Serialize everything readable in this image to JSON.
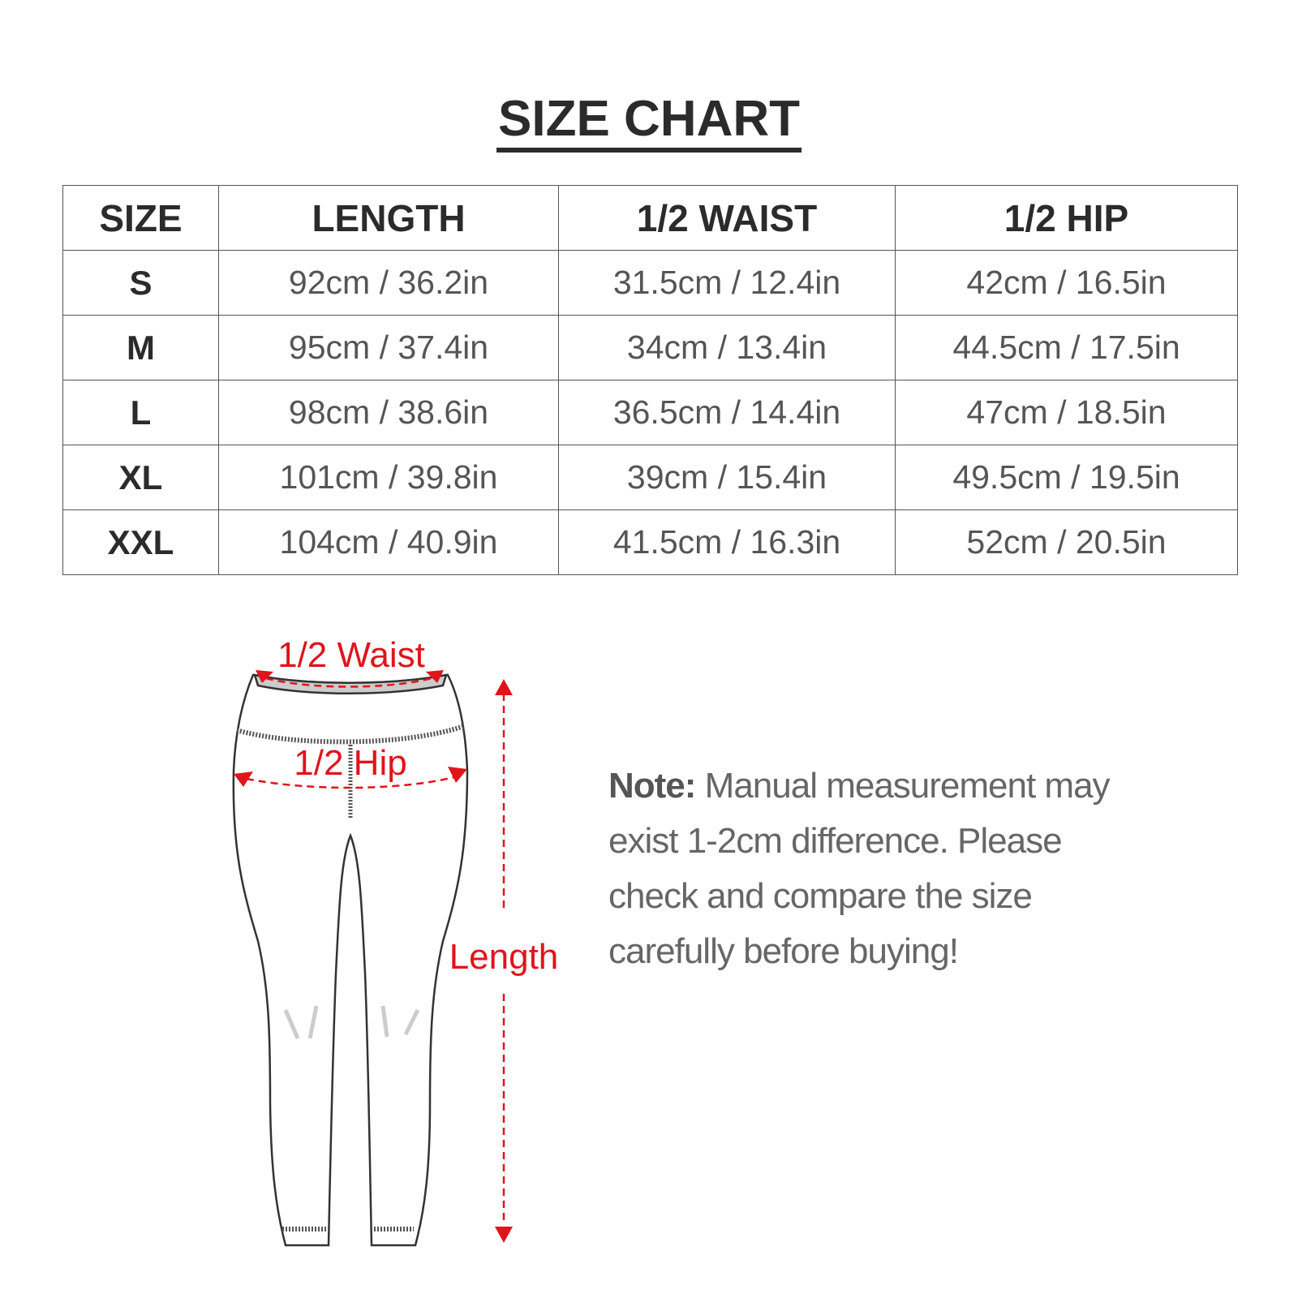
{
  "title": "SIZE CHART",
  "table": {
    "headers": [
      "SIZE",
      "LENGTH",
      "1/2 WAIST",
      "1/2 HIP"
    ],
    "rows": [
      [
        "S",
        "92cm / 36.2in",
        "31.5cm / 12.4in",
        "42cm / 16.5in"
      ],
      [
        "M",
        "95cm / 37.4in",
        "34cm / 13.4in",
        "44.5cm / 17.5in"
      ],
      [
        "L",
        "98cm / 38.6in",
        "36.5cm / 14.4in",
        "47cm / 18.5in"
      ],
      [
        "XL",
        "101cm / 39.8in",
        "39cm / 15.4in",
        "49.5cm / 19.5in"
      ],
      [
        "XXL",
        "104cm / 40.9in",
        "41.5cm / 16.3in",
        "52cm / 20.5in"
      ]
    ]
  },
  "diagram": {
    "waist_label": "1/2 Waist",
    "hip_label": "1/2 Hip",
    "length_label": "Length",
    "accent_color": "#e0141b"
  },
  "note": {
    "label": "Note:",
    "text": " Manual measurement may exist 1-2cm difference. Please check and compare the size carefully before buying!"
  }
}
